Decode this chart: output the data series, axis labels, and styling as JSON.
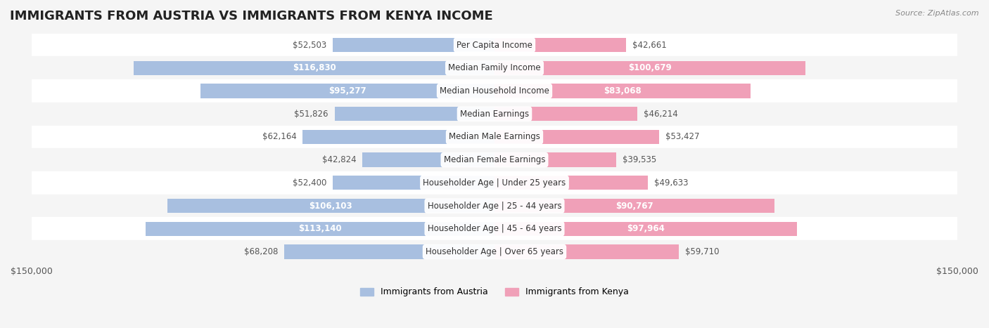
{
  "title": "IMMIGRANTS FROM AUSTRIA VS IMMIGRANTS FROM KENYA INCOME",
  "source": "Source: ZipAtlas.com",
  "categories": [
    "Per Capita Income",
    "Median Family Income",
    "Median Household Income",
    "Median Earnings",
    "Median Male Earnings",
    "Median Female Earnings",
    "Householder Age | Under 25 years",
    "Householder Age | 25 - 44 years",
    "Householder Age | 45 - 64 years",
    "Householder Age | Over 65 years"
  ],
  "austria_values": [
    52503,
    116830,
    95277,
    51826,
    62164,
    42824,
    52400,
    106103,
    113140,
    68208
  ],
  "kenya_values": [
    42661,
    100679,
    83068,
    46214,
    53427,
    39535,
    49633,
    90767,
    97964,
    59710
  ],
  "austria_color": "#a8bfe0",
  "kenya_color": "#f0a0b8",
  "austria_label_color_threshold": 70000,
  "kenya_label_color_threshold": 70000,
  "austria_label": "Immigrants from Austria",
  "kenya_label": "Immigrants from Kenya",
  "max_value": 150000,
  "x_axis_label_left": "$150,000",
  "x_axis_label_right": "$150,000",
  "background_color": "#f5f5f5",
  "row_background_color": "#ffffff",
  "row_alt_color": "#f5f5f5",
  "label_font_size": 8.5,
  "category_font_size": 8.5,
  "title_font_size": 13
}
